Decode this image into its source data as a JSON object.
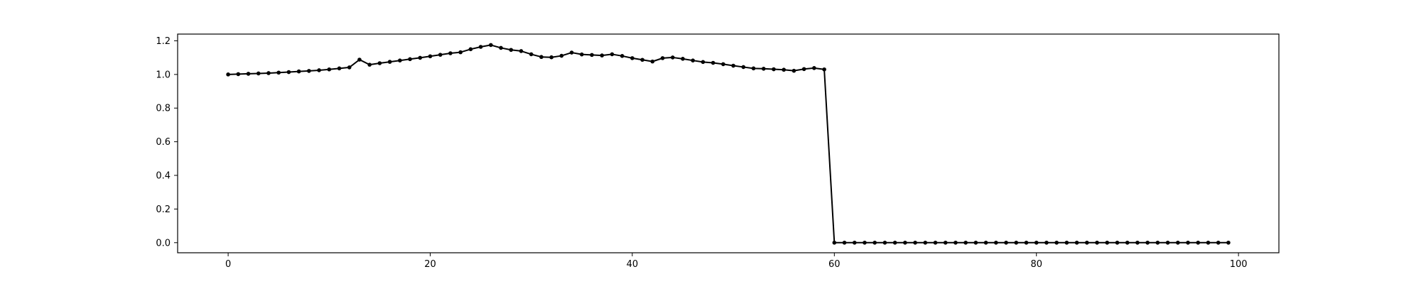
{
  "chart_data": {
    "type": "line",
    "title": "",
    "xlabel": "",
    "ylabel": "",
    "xlim": [
      -5,
      104
    ],
    "ylim": [
      -0.06,
      1.24
    ],
    "xticks": [
      0,
      20,
      40,
      60,
      80,
      100
    ],
    "xtick_labels": [
      "0",
      "20",
      "40",
      "60",
      "80",
      "100"
    ],
    "yticks": [
      0.0,
      0.2,
      0.4,
      0.6,
      0.8,
      1.0,
      1.2
    ],
    "ytick_labels": [
      "0.0",
      "0.2",
      "0.4",
      "0.6",
      "0.8",
      "1.0",
      "1.2"
    ],
    "grid": false,
    "legend": "none",
    "series": [
      {
        "color": "#000000",
        "marker": "dot",
        "x": [
          0,
          1,
          2,
          3,
          4,
          5,
          6,
          7,
          8,
          9,
          10,
          11,
          12,
          13,
          14,
          15,
          16,
          17,
          18,
          19,
          20,
          21,
          22,
          23,
          24,
          25,
          26,
          27,
          28,
          29,
          30,
          31,
          32,
          33,
          34,
          35,
          36,
          37,
          38,
          39,
          40,
          41,
          42,
          43,
          44,
          45,
          46,
          47,
          48,
          49,
          50,
          51,
          52,
          53,
          54,
          55,
          56,
          57,
          58,
          59,
          60,
          61,
          62,
          63,
          64,
          65,
          66,
          67,
          68,
          69,
          70,
          71,
          72,
          73,
          74,
          75,
          76,
          77,
          78,
          79,
          80,
          81,
          82,
          83,
          84,
          85,
          86,
          87,
          88,
          89,
          90,
          91,
          92,
          93,
          94,
          95,
          96,
          97,
          98,
          99
        ],
        "values": [
          1.0,
          1.002,
          1.004,
          1.006,
          1.008,
          1.011,
          1.014,
          1.018,
          1.021,
          1.025,
          1.03,
          1.036,
          1.042,
          1.088,
          1.058,
          1.067,
          1.075,
          1.083,
          1.091,
          1.099,
          1.108,
          1.117,
          1.126,
          1.132,
          1.15,
          1.164,
          1.175,
          1.158,
          1.146,
          1.139,
          1.12,
          1.104,
          1.102,
          1.111,
          1.13,
          1.119,
          1.116,
          1.113,
          1.12,
          1.11,
          1.097,
          1.087,
          1.077,
          1.097,
          1.101,
          1.093,
          1.083,
          1.074,
          1.069,
          1.061,
          1.052,
          1.044,
          1.036,
          1.034,
          1.031,
          1.028,
          1.022,
          1.032,
          1.038,
          1.03,
          0.0,
          0.0,
          0.0,
          0.0,
          0.0,
          0.0,
          0.0,
          0.0,
          0.0,
          0.0,
          0.0,
          0.0,
          0.0,
          0.0,
          0.0,
          0.0,
          0.0,
          0.0,
          0.0,
          0.0,
          0.0,
          0.0,
          0.0,
          0.0,
          0.0,
          0.0,
          0.0,
          0.0,
          0.0,
          0.0,
          0.0,
          0.0,
          0.0,
          0.0,
          0.0,
          0.0,
          0.0,
          0.0,
          0.0,
          0.0
        ]
      }
    ]
  }
}
